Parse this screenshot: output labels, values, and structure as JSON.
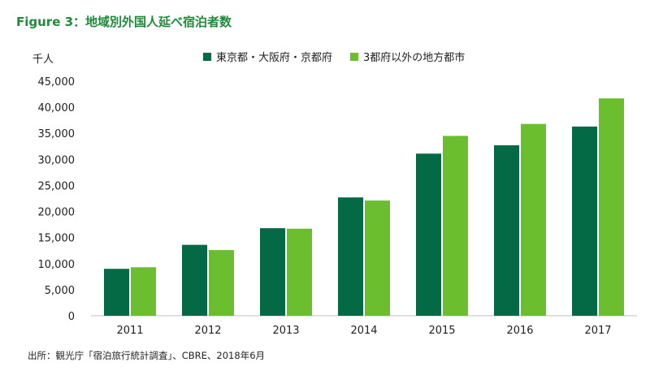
{
  "title": "Figure 3：地域別外国人延べ宿泊者数",
  "source": "出所：観光庁「宿泊旅行統計調査」、CBRE、2018年6月",
  "chart_data": {
    "type": "bar",
    "title": "Figure 3：地域別外国人延べ宿泊者数",
    "ylabel": "千人",
    "xlabel": "",
    "categories": [
      "2011",
      "2012",
      "2013",
      "2014",
      "2015",
      "2016",
      "2017"
    ],
    "series": [
      {
        "name": "東京都・大阪府・京都府",
        "color": "#046a46",
        "values": [
          9000,
          13600,
          16800,
          22700,
          31100,
          32700,
          36300
        ]
      },
      {
        "name": "3都府以外の地方都市",
        "color": "#6bbf2e",
        "values": [
          9300,
          12600,
          16700,
          22100,
          34500,
          36800,
          41700
        ]
      }
    ],
    "ylim": [
      0,
      45000
    ],
    "yticks": [
      "0",
      "5,000",
      "10,000",
      "15,000",
      "20,000",
      "25,000",
      "30,000",
      "35,000",
      "40,000",
      "45,000"
    ],
    "grid": false,
    "legend_position": "top"
  }
}
